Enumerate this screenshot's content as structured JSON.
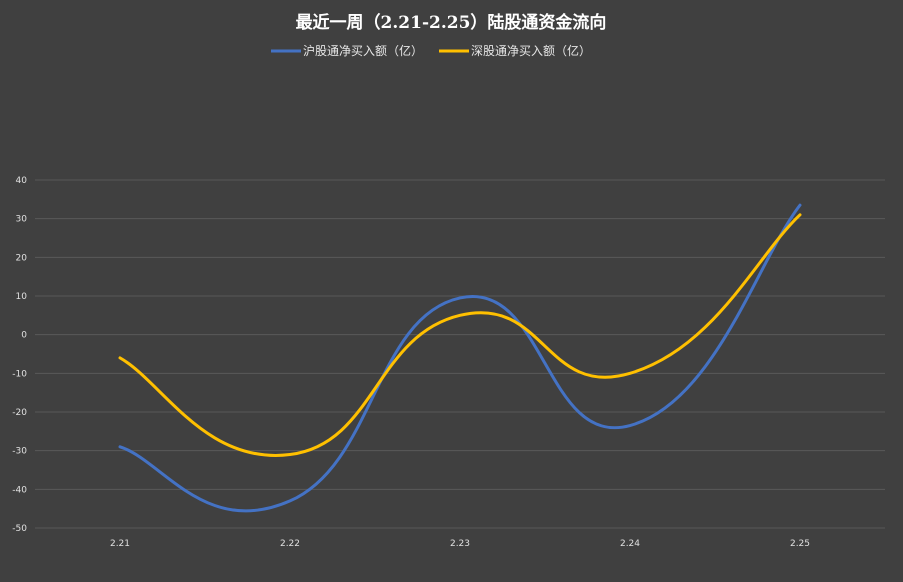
{
  "chart_data": {
    "type": "line",
    "title": "最近一周（2.21-2.25）陆股通资金流向",
    "categories": [
      "2.21",
      "2.22",
      "2.23",
      "2.24",
      "2.25"
    ],
    "series": [
      {
        "name": "沪股通净买入额（亿）",
        "values": [
          -29,
          -43,
          9.5,
          -23.5,
          33.5
        ],
        "color": "#4472C4"
      },
      {
        "name": "深股通净买入额（亿）",
        "values": [
          -6,
          -31,
          5,
          -10,
          31
        ],
        "color": "#FFC000"
      }
    ],
    "ylim": [
      -50,
      40
    ],
    "yticks": [
      40,
      30,
      20,
      10,
      0,
      -10,
      -20,
      -30,
      -40,
      -50
    ],
    "grid": true,
    "legend_position": "top"
  }
}
